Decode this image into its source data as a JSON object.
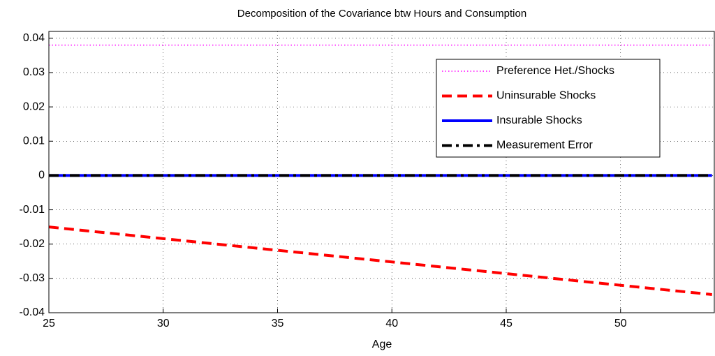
{
  "chart_data": {
    "type": "line",
    "title": "Decomposition of the Covariance btw Hours and Consumption",
    "xlabel": "Age",
    "x": [
      25,
      30,
      35,
      40,
      45,
      50,
      54
    ],
    "series": [
      {
        "name": "Preference Het./Shocks",
        "color": "#ff00ff",
        "style": "dotted",
        "values": [
          0.038,
          0.038,
          0.038,
          0.038,
          0.038,
          0.038,
          0.038
        ]
      },
      {
        "name": "Uninsurable Shocks",
        "color": "#ff0000",
        "style": "dashed",
        "values": [
          -0.015,
          -0.0184,
          -0.0218,
          -0.0252,
          -0.0286,
          -0.032,
          -0.0347
        ]
      },
      {
        "name": "Insurable Shocks",
        "color": "#0000ff",
        "style": "solid",
        "values": [
          0,
          0,
          0,
          0,
          0,
          0,
          0
        ]
      },
      {
        "name": "Measurement Error",
        "color": "#000000",
        "style": "dashdot",
        "values": [
          0,
          0,
          0,
          0,
          0,
          0,
          0
        ]
      }
    ],
    "xlim": [
      25,
      54.1
    ],
    "xticks": [
      25,
      30,
      35,
      40,
      45,
      50
    ],
    "ylim": [
      -0.04,
      0.042
    ],
    "yticks": [
      -0.04,
      -0.03,
      -0.02,
      -0.01,
      0,
      0.01,
      0.02,
      0.03,
      0.04
    ],
    "grid": true,
    "legend": "upper right"
  }
}
